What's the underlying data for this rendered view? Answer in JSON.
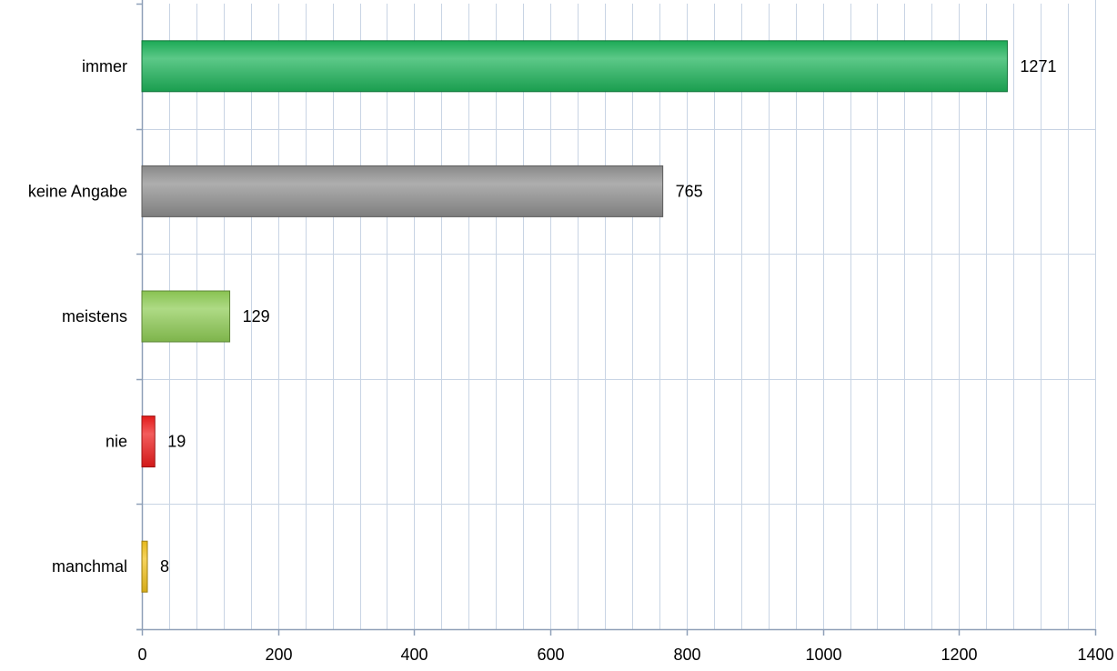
{
  "chart_data": {
    "type": "bar",
    "orientation": "horizontal",
    "categories": [
      "immer",
      "keine Angabe",
      "meistens",
      "nie",
      "manchmal"
    ],
    "values": [
      1271,
      765,
      129,
      19,
      8
    ],
    "bar_colors": [
      "#1db35a",
      "#8f8f8f",
      "#8fcc55",
      "#ee1c1c",
      "#f2c21c"
    ],
    "xlim": [
      0,
      1400
    ],
    "x_ticks": [
      0,
      200,
      400,
      600,
      800,
      1000,
      1200,
      1400
    ],
    "x_tick_labels": [
      "0",
      "200",
      "400",
      "600",
      "800",
      "1000",
      "1200",
      "1400"
    ],
    "minor_tick_step": 40,
    "grid": true,
    "grid_color": "#c8d4e4",
    "axis_color": "#8fa0b8",
    "data_labels": [
      "1271",
      "765",
      "129",
      "19",
      "8"
    ],
    "title": "",
    "xlabel": "",
    "ylabel": "",
    "legend": "none"
  }
}
